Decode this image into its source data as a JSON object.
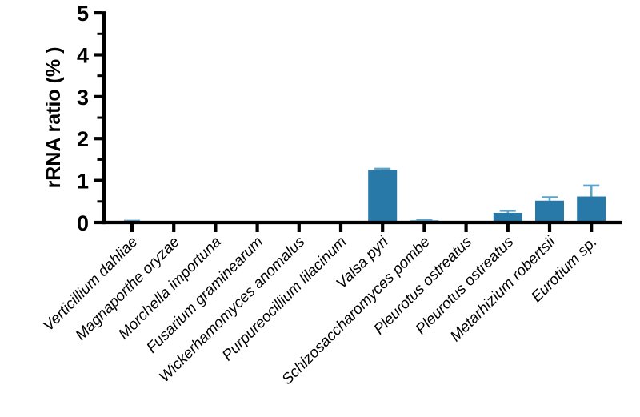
{
  "figure": {
    "background_color": "#FFFFFF",
    "axis_color": "#000000",
    "text_color": "#000000"
  },
  "chart_data": {
    "type": "bar",
    "title": "",
    "xlabel": "",
    "ylabel": "rRNA ratio (% )",
    "ylim": [
      0,
      5
    ],
    "yticks": [
      0,
      1,
      2,
      3,
      4,
      5
    ],
    "y_minor_tick_step": 0.5,
    "grid": false,
    "legend": "none",
    "x_tick_label_rotation_deg": 45,
    "x_tick_label_italic": true,
    "bar_color": "#2878A8",
    "error_bar_color": "#5FA2C8",
    "categories": [
      "Verticillium dahliae",
      "Magnaporthe oryzae",
      "Morchella importuna",
      "Fusarium graminearum",
      "Wickerhamomyces anomalus",
      "Purpureocillium lilacinum",
      "Valsa pyri",
      "Schizosaccharomyces pombe",
      "Pleurotus ostreatus",
      "Pleurotus ostreatus",
      "Metarhizium robertsii",
      "Eurotium sp."
    ],
    "series": [
      {
        "name": "rRNA ratio (%)",
        "values": [
          0.03,
          0,
          0,
          0,
          0,
          0.03,
          1.25,
          0.05,
          0,
          0.23,
          0.52,
          0.62
        ],
        "errors_plus": [
          0.01,
          0,
          0,
          0,
          0,
          0,
          0.03,
          0.01,
          0,
          0.05,
          0.08,
          0.26
        ]
      }
    ]
  }
}
